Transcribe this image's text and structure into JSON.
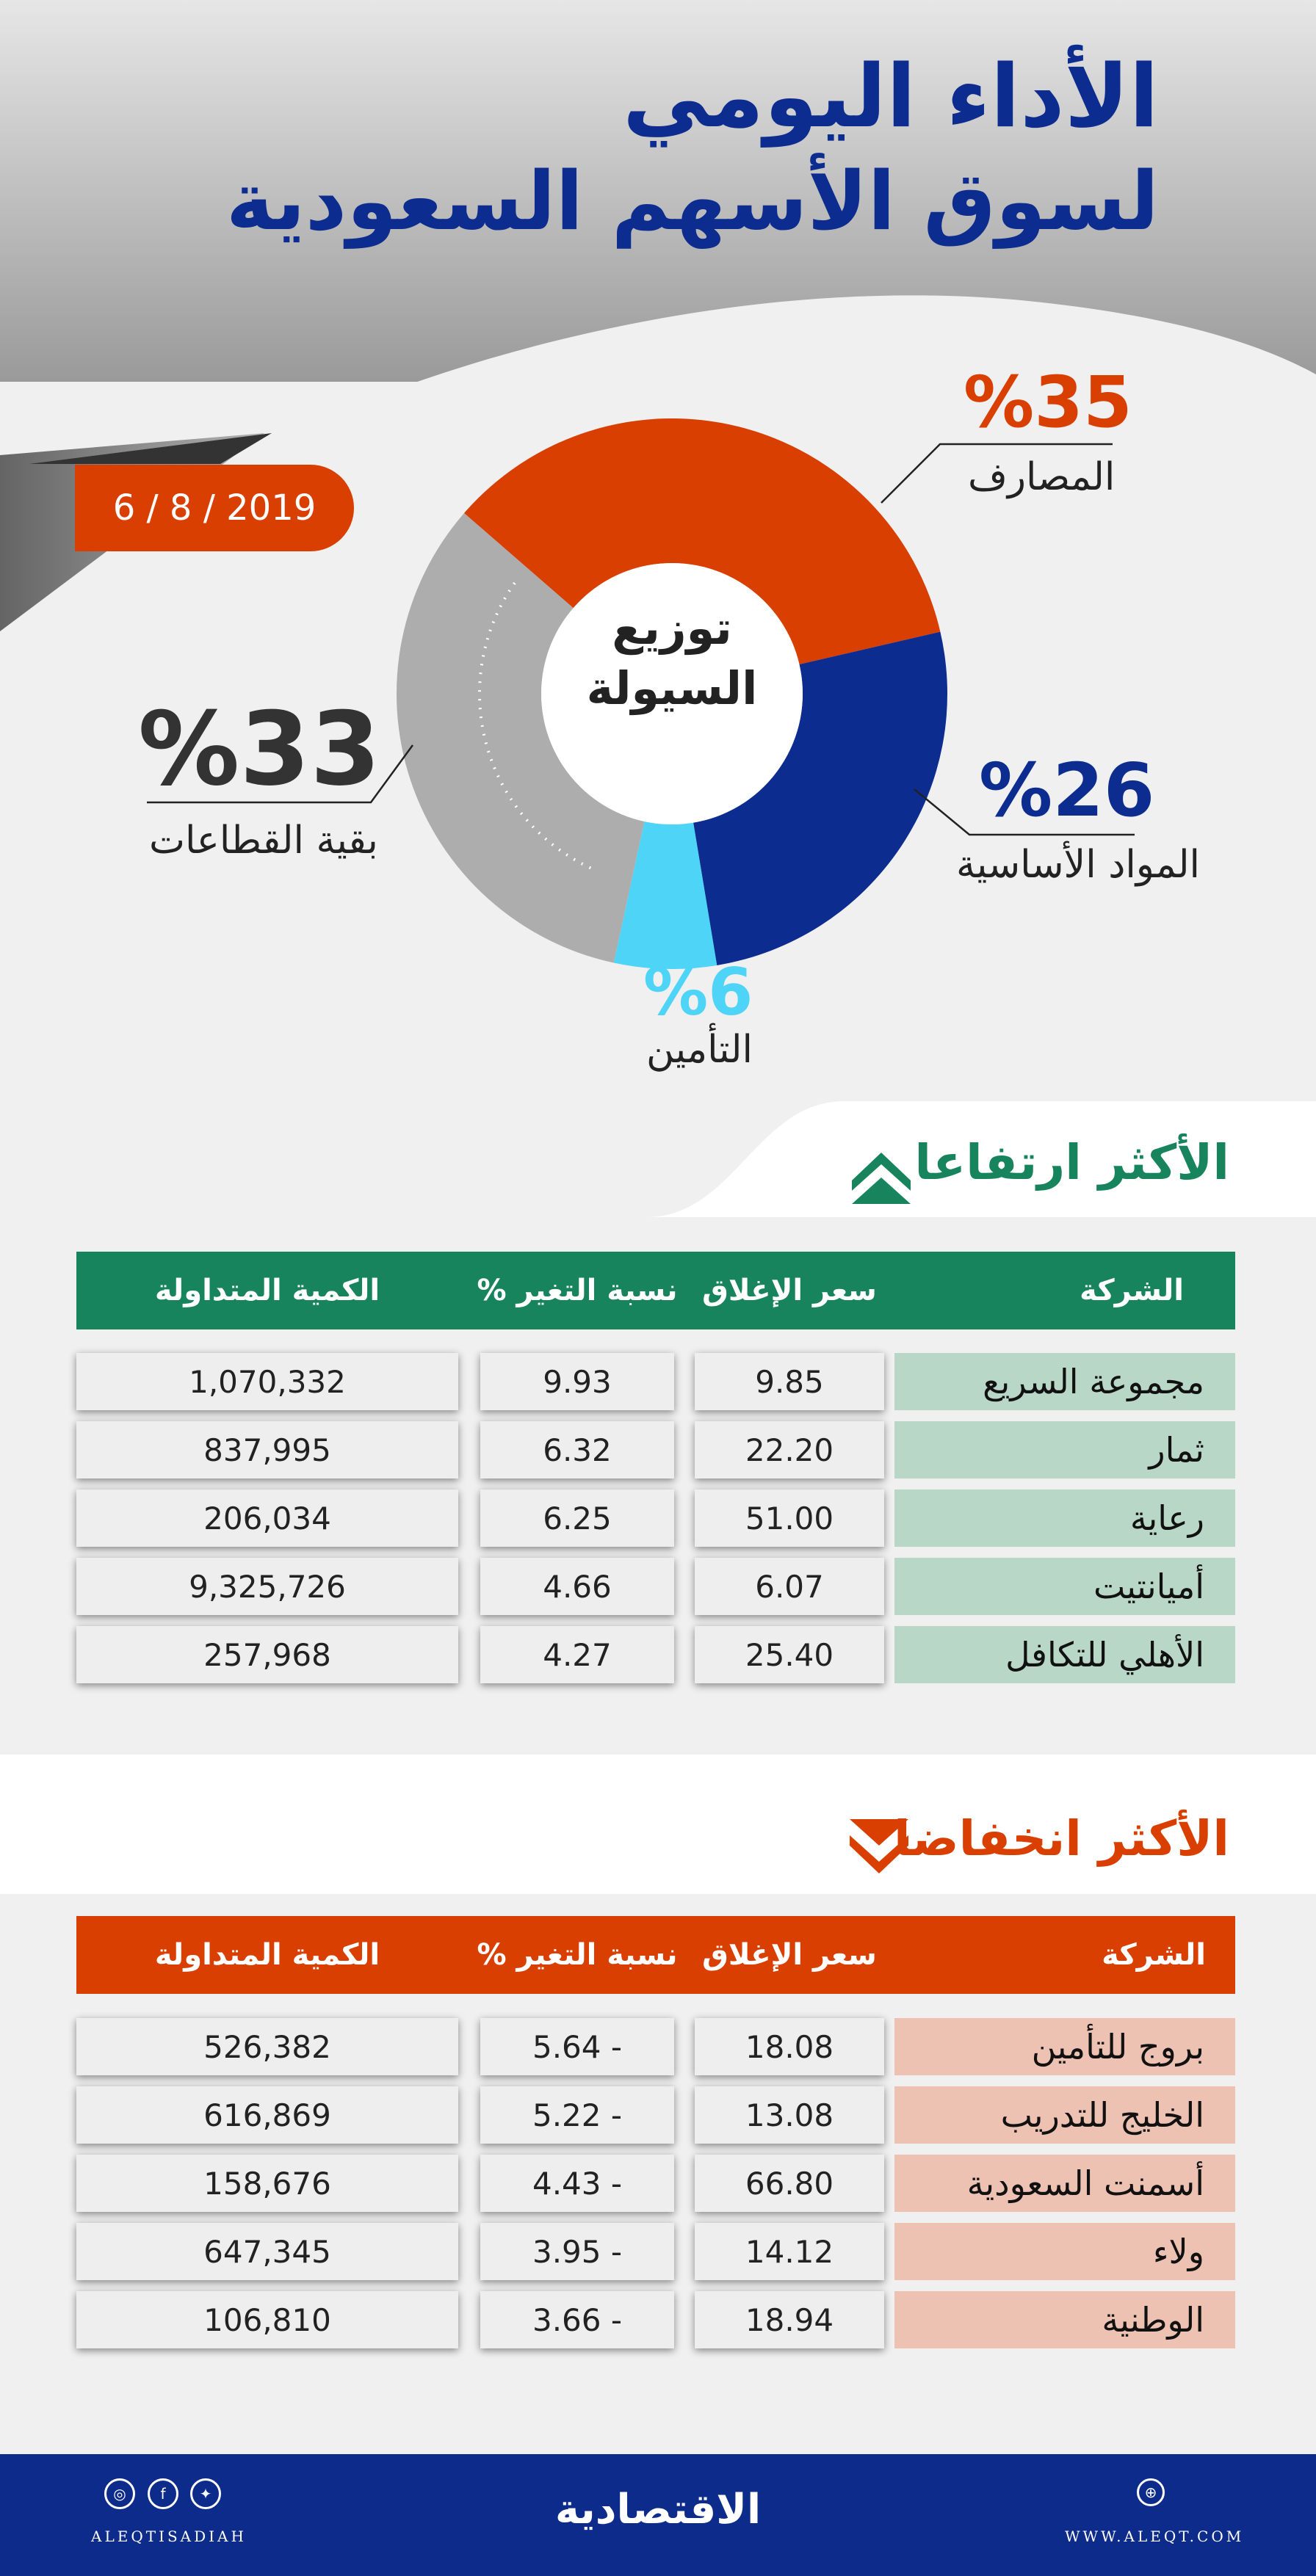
{
  "header": {
    "title_line1": "الأداء اليومي",
    "title_line2": "لسوق الأسهم السعودية",
    "date": "6 / 8 / 2019"
  },
  "donut": {
    "center_line1": "توزيع",
    "center_line2": "السيولة",
    "segments": [
      {
        "label": "المصارف",
        "pct_text": "%35",
        "value": 35,
        "color": "#d93f00"
      },
      {
        "label": "المواد الأساسية",
        "pct_text": "%26",
        "value": 26,
        "color": "#0d2c8f"
      },
      {
        "label": "التأمين",
        "pct_text": "%6",
        "value": 6,
        "color": "#4dd4f7"
      },
      {
        "label": "بقية القطاعات",
        "pct_text": "%33",
        "value": 33,
        "color": "#adadad"
      }
    ]
  },
  "gainers": {
    "title": "الأكثر ارتفاعا",
    "color": "#17845e",
    "columns": [
      "الشركة",
      "سعر الإغلاق",
      "نسبة التغير %",
      "الكمية المتداولة"
    ],
    "rows": [
      {
        "company": "مجموعة السريع",
        "close": "9.85",
        "change": "9.93",
        "volume": "1,070,332"
      },
      {
        "company": "ثمار",
        "close": "22.20",
        "change": "6.32",
        "volume": "837,995"
      },
      {
        "company": "رعاية",
        "close": "51.00",
        "change": "6.25",
        "volume": "206,034"
      },
      {
        "company": "أميانتيت",
        "close": "6.07",
        "change": "4.66",
        "volume": "9,325,726"
      },
      {
        "company": "الأهلي للتكافل",
        "close": "25.40",
        "change": "4.27",
        "volume": "257,968"
      }
    ]
  },
  "losers": {
    "title": "الأكثر انخفاضا",
    "color": "#d93f00",
    "columns": [
      "الشركة",
      "سعر الإغلاق",
      "نسبة التغير %",
      "الكمية المتداولة"
    ],
    "rows": [
      {
        "company": "بروج للتأمين",
        "close": "18.08",
        "change": "5.64 -",
        "volume": "526,382"
      },
      {
        "company": "الخليج للتدريب",
        "close": "13.08",
        "change": "5.22 -",
        "volume": "616,869"
      },
      {
        "company": "أسمنت السعودية",
        "close": "66.80",
        "change": "4.43 -",
        "volume": "158,676"
      },
      {
        "company": "ولاء",
        "close": "14.12",
        "change": "3.95 -",
        "volume": "647,345"
      },
      {
        "company": "الوطنية",
        "close": "18.94",
        "change": "3.66 -",
        "volume": "106,810"
      }
    ]
  },
  "footer": {
    "brand": "الاقتصادية",
    "handle": "ALEQTISADIAH",
    "website": "WWW.ALEQT.COM",
    "icons": [
      "instagram-icon",
      "facebook-icon",
      "twitter-icon",
      "globe-icon"
    ]
  }
}
